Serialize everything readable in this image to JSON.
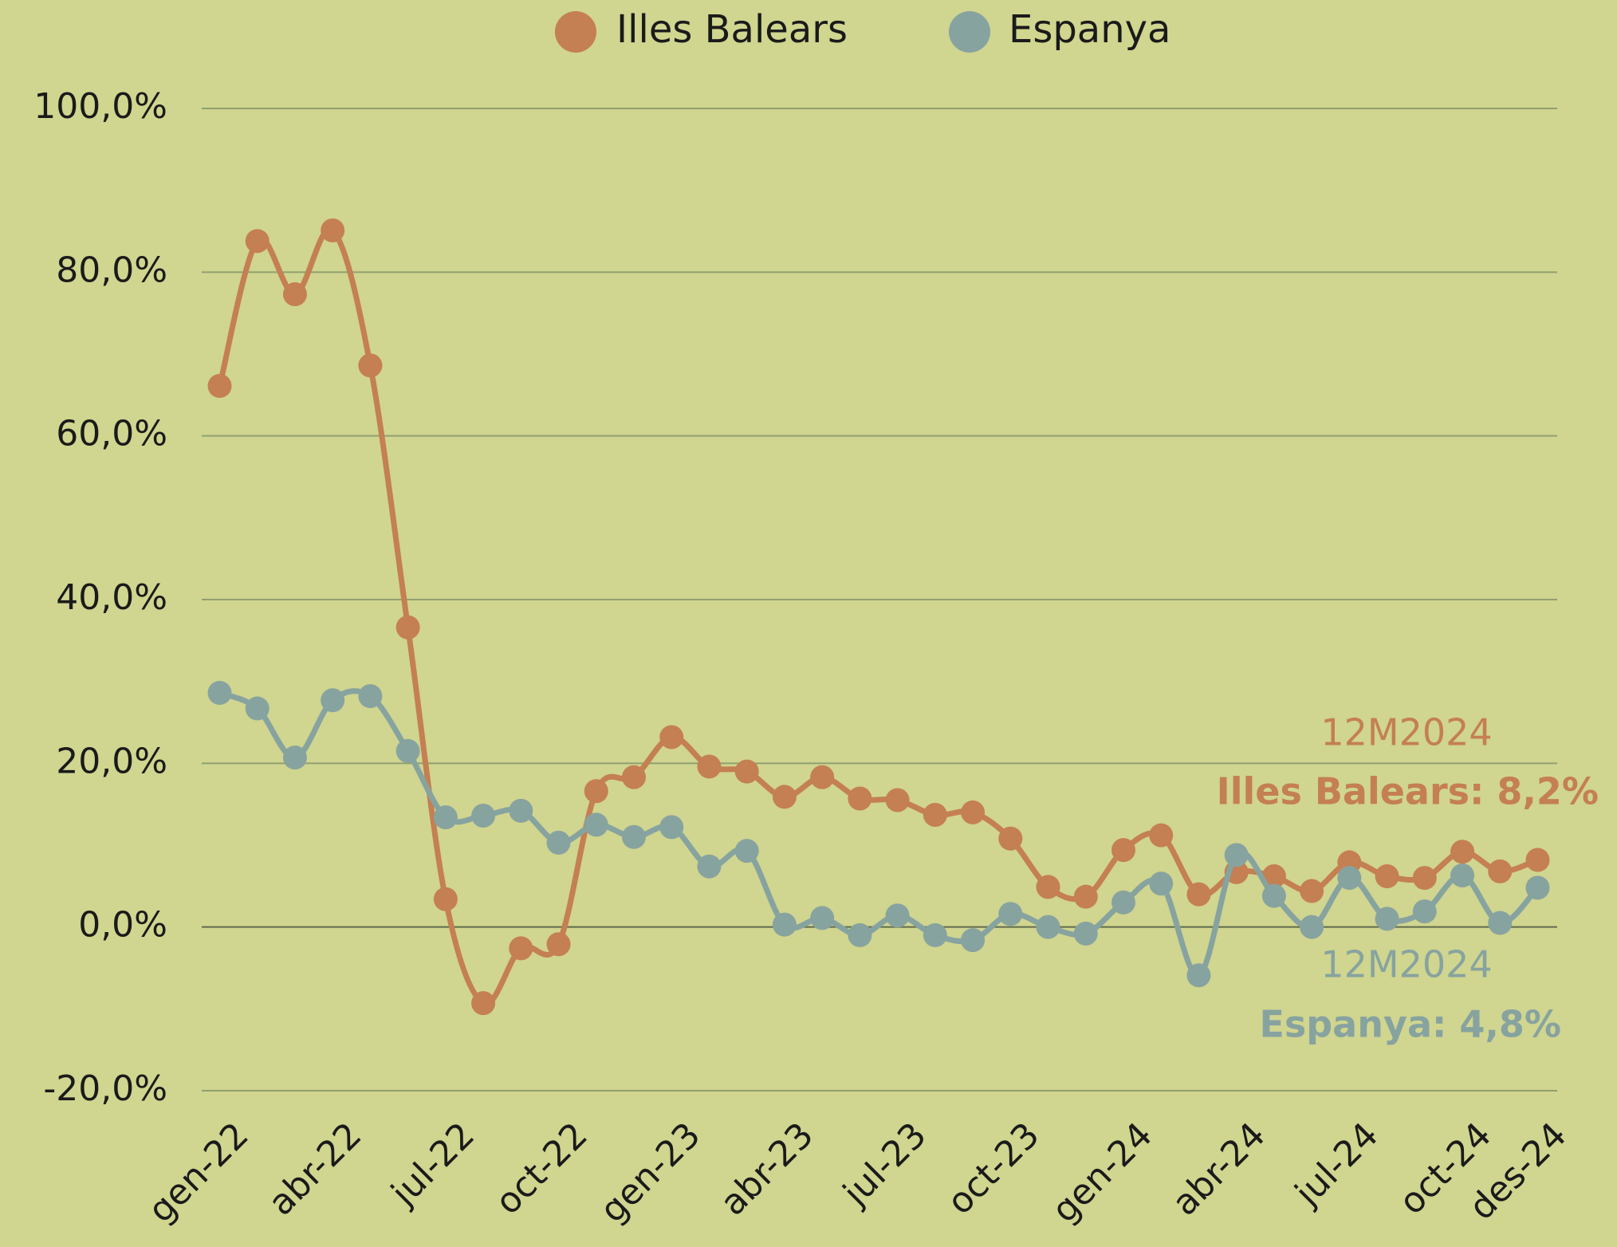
{
  "chart_data": {
    "type": "line",
    "categories": [
      "gen-22",
      null,
      null,
      "abr-22",
      null,
      null,
      "jul-22",
      null,
      null,
      "oct-22",
      null,
      null,
      "gen-23",
      null,
      null,
      "abr-23",
      null,
      null,
      "jul-23",
      null,
      null,
      "oct-23",
      null,
      null,
      "gen-24",
      null,
      null,
      "abr-24",
      null,
      null,
      "jul-24",
      null,
      null,
      "oct-24",
      null,
      "des-24"
    ],
    "series": [
      {
        "name": "Illes Balears",
        "color": "#c47f52",
        "values": [
          66.1,
          83.8,
          77.3,
          85.1,
          68.6,
          36.6,
          3.4,
          -9.3,
          -2.6,
          -2.1,
          16.6,
          18.3,
          23.2,
          19.6,
          19.0,
          15.9,
          18.3,
          15.7,
          15.5,
          13.7,
          14.0,
          10.8,
          4.9,
          3.7,
          9.4,
          11.2,
          4.0,
          6.7,
          6.2,
          4.4,
          7.9,
          6.2,
          6.0,
          9.2,
          6.8,
          8.2
        ]
      },
      {
        "name": "Espanya",
        "color": "#87a3a0",
        "values": [
          28.6,
          26.7,
          20.7,
          27.7,
          28.2,
          21.5,
          13.4,
          13.6,
          14.2,
          10.3,
          12.5,
          11.0,
          12.2,
          7.4,
          9.3,
          0.3,
          1.1,
          -1.0,
          1.4,
          -1.0,
          -1.6,
          1.6,
          0.0,
          -0.8,
          3.0,
          5.3,
          -5.9,
          8.8,
          3.8,
          0.0,
          6.0,
          1.0,
          1.9,
          6.3,
          0.5,
          4.8
        ]
      }
    ],
    "ylim": [
      -20,
      100
    ],
    "yticks": [
      {
        "value": -20,
        "label": "-20,0%"
      },
      {
        "value": 0,
        "label": "0,0%"
      },
      {
        "value": 20,
        "label": "20,0%"
      },
      {
        "value": 40,
        "label": "40,0%"
      },
      {
        "value": 60,
        "label": "60,0%"
      },
      {
        "value": 80,
        "label": "80,0%"
      },
      {
        "value": 100,
        "label": "100,0%"
      }
    ],
    "grid": true,
    "legend": "top",
    "annotations": [
      {
        "text": "12M2024",
        "color": "#c47f52"
      },
      {
        "text": "Illes Balears: 8,2%",
        "color": "#c47f52"
      },
      {
        "text": "12M2024",
        "color": "#87a3a0"
      },
      {
        "text": "Espanya: 4,8%",
        "color": "#87a3a0"
      }
    ]
  }
}
